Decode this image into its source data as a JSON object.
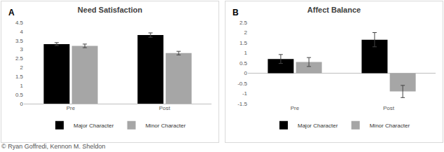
{
  "chart_data": [
    {
      "type": "bar",
      "title": "Need Satisfaction",
      "annotations": [
        "A"
      ],
      "categories": [
        "Pre",
        "Post"
      ],
      "series": [
        {
          "name": "Major Character",
          "color": "#000000",
          "values": [
            3.3,
            3.8
          ],
          "errors": [
            0.08,
            0.12
          ]
        },
        {
          "name": "Minor Character",
          "color": "#a6a6a6",
          "values": [
            3.2,
            2.8
          ],
          "errors": [
            0.1,
            0.1
          ]
        }
      ],
      "ylim": [
        0,
        4.5
      ],
      "yticks": [
        0,
        0.5,
        1,
        1.5,
        2,
        2.5,
        3,
        3.5,
        4,
        4.5
      ],
      "grid": false,
      "legend": "bottom"
    },
    {
      "type": "bar",
      "title": "Affect Balance",
      "annotations": [
        "B"
      ],
      "categories": [
        "Pre",
        "Post"
      ],
      "series": [
        {
          "name": "Major Character",
          "color": "#000000",
          "values": [
            0.7,
            1.65
          ],
          "errors": [
            0.22,
            0.35
          ]
        },
        {
          "name": "Minor Character",
          "color": "#a6a6a6",
          "values": [
            0.55,
            -0.9
          ],
          "errors": [
            0.22,
            0.3
          ]
        }
      ],
      "ylim": [
        -1.5,
        2.5
      ],
      "yticks": [
        -1.5,
        -1,
        -0.5,
        0,
        0.5,
        1,
        1.5,
        2,
        2.5
      ],
      "grid": false,
      "legend": "bottom"
    }
  ],
  "credit": "© Ryan Goffredi, Kennon M. Sheldon"
}
